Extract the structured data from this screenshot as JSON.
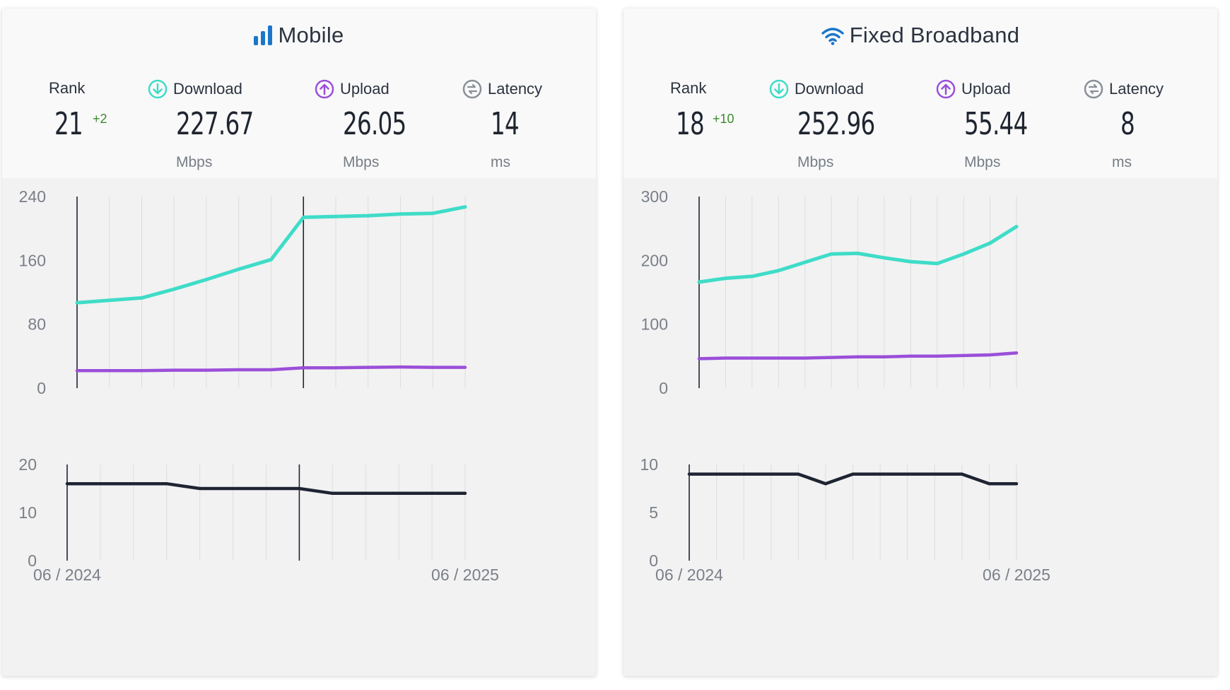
{
  "colors": {
    "download": "#3fdcc8",
    "upload": "#9b4fd9",
    "latency": "#1f2433",
    "mobile_icon": "#1a76c9",
    "rank_change": "#3c8a2e"
  },
  "mobile": {
    "title": "Mobile",
    "icon": "signal-bars-icon",
    "rank_label": "Rank",
    "rank": "21",
    "rank_change": "+2",
    "download_label": "Download",
    "download": "227.67",
    "download_unit": "Mbps",
    "upload_label": "Upload",
    "upload": "26.05",
    "upload_unit": "Mbps",
    "latency_label": "Latency",
    "latency": "14",
    "latency_unit": "ms"
  },
  "fixed": {
    "title": "Fixed Broadband",
    "icon": "wifi-icon",
    "rank_label": "Rank",
    "rank": "18",
    "rank_change": "+10",
    "download_label": "Download",
    "download": "252.96",
    "download_unit": "Mbps",
    "upload_label": "Upload",
    "upload": "55.44",
    "upload_unit": "Mbps",
    "latency_label": "Latency",
    "latency": "8",
    "latency_unit": "ms"
  },
  "chart_data": [
    {
      "type": "line",
      "panel": "mobile-speed",
      "ylim": [
        0,
        240
      ],
      "yticks": [
        "240",
        "160",
        "80",
        "0"
      ],
      "x_start": "06 / 2024",
      "x_end": "06 / 2025",
      "series": [
        {
          "values": [
            107,
            110,
            113,
            124,
            136,
            149,
            161,
            214,
            215,
            216,
            218,
            219,
            227
          ]
        },
        {
          "values": [
            22,
            22,
            22,
            22.5,
            22.5,
            23,
            23,
            25.5,
            25.5,
            26,
            26.5,
            26,
            26
          ]
        }
      ],
      "vlines_at_index": [
        0,
        7
      ],
      "grid": true
    },
    {
      "type": "line",
      "panel": "mobile-latency",
      "ylim": [
        0,
        20
      ],
      "yticks": [
        "20",
        "10",
        "0"
      ],
      "x_start": "06 / 2024",
      "x_end": "06 / 2025",
      "series": [
        {
          "values": [
            16,
            16,
            16,
            16,
            15,
            15,
            15,
            15,
            14,
            14,
            14,
            14,
            14
          ]
        }
      ],
      "vlines_at_index": [
        0,
        7
      ],
      "grid": true
    },
    {
      "type": "line",
      "panel": "fixed-speed",
      "ylim": [
        0,
        300
      ],
      "yticks": [
        "300",
        "200",
        "100",
        "0"
      ],
      "x_start": "06 / 2024",
      "x_end": "06 / 2025",
      "series": [
        {
          "values": [
            166,
            172,
            175,
            184,
            197,
            210,
            211,
            204,
            198,
            195,
            210,
            227,
            253
          ]
        },
        {
          "values": [
            46,
            47,
            47,
            47,
            47,
            48,
            49,
            49,
            50,
            50,
            51,
            52,
            55
          ]
        }
      ],
      "vlines_at_index": [
        0
      ],
      "grid": true
    },
    {
      "type": "line",
      "panel": "fixed-latency",
      "ylim": [
        0,
        10
      ],
      "yticks": [
        "10",
        "5",
        "0"
      ],
      "x_start": "06 / 2024",
      "x_end": "06 / 2025",
      "series": [
        {
          "values": [
            9,
            9,
            9,
            9,
            9,
            8,
            9,
            9,
            9,
            9,
            9,
            8,
            8
          ]
        }
      ],
      "vlines_at_index": [
        0
      ],
      "grid": true
    }
  ]
}
